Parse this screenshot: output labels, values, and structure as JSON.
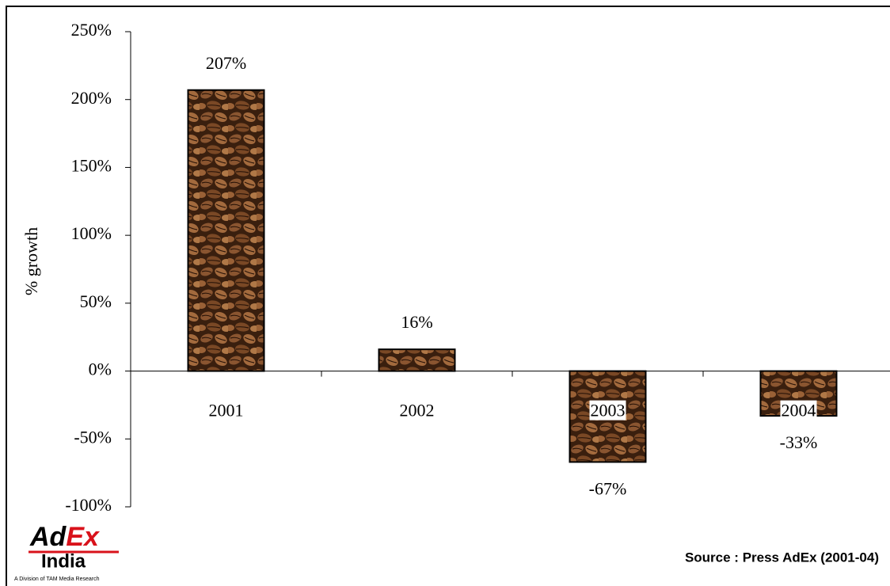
{
  "chart_data": {
    "type": "bar",
    "y_label": "% growth",
    "categories": [
      "2001",
      "2002",
      "2003",
      "2004"
    ],
    "values": [
      207,
      16,
      -67,
      -33
    ],
    "value_labels": [
      "207%",
      "16%",
      "-67%",
      "-33%"
    ],
    "color": "#6b3f1f",
    "ylim": [
      -100,
      250
    ],
    "yticks": [
      {
        "value": -100,
        "label": "-100%"
      },
      {
        "value": -50,
        "label": "-50%"
      },
      {
        "value": 0,
        "label": "0%"
      },
      {
        "value": 50,
        "label": "50%"
      },
      {
        "value": 100,
        "label": "100%"
      },
      {
        "value": 150,
        "label": "150%"
      },
      {
        "value": 200,
        "label": "200%"
      },
      {
        "value": 250,
        "label": "250%"
      }
    ],
    "grid": false,
    "source": "Source : Press AdEx (2001-04)"
  },
  "logo": {
    "brand_left": "Ad",
    "brand_right": "Ex",
    "region": "India",
    "tagline": "A Division of TAM Media Research"
  }
}
